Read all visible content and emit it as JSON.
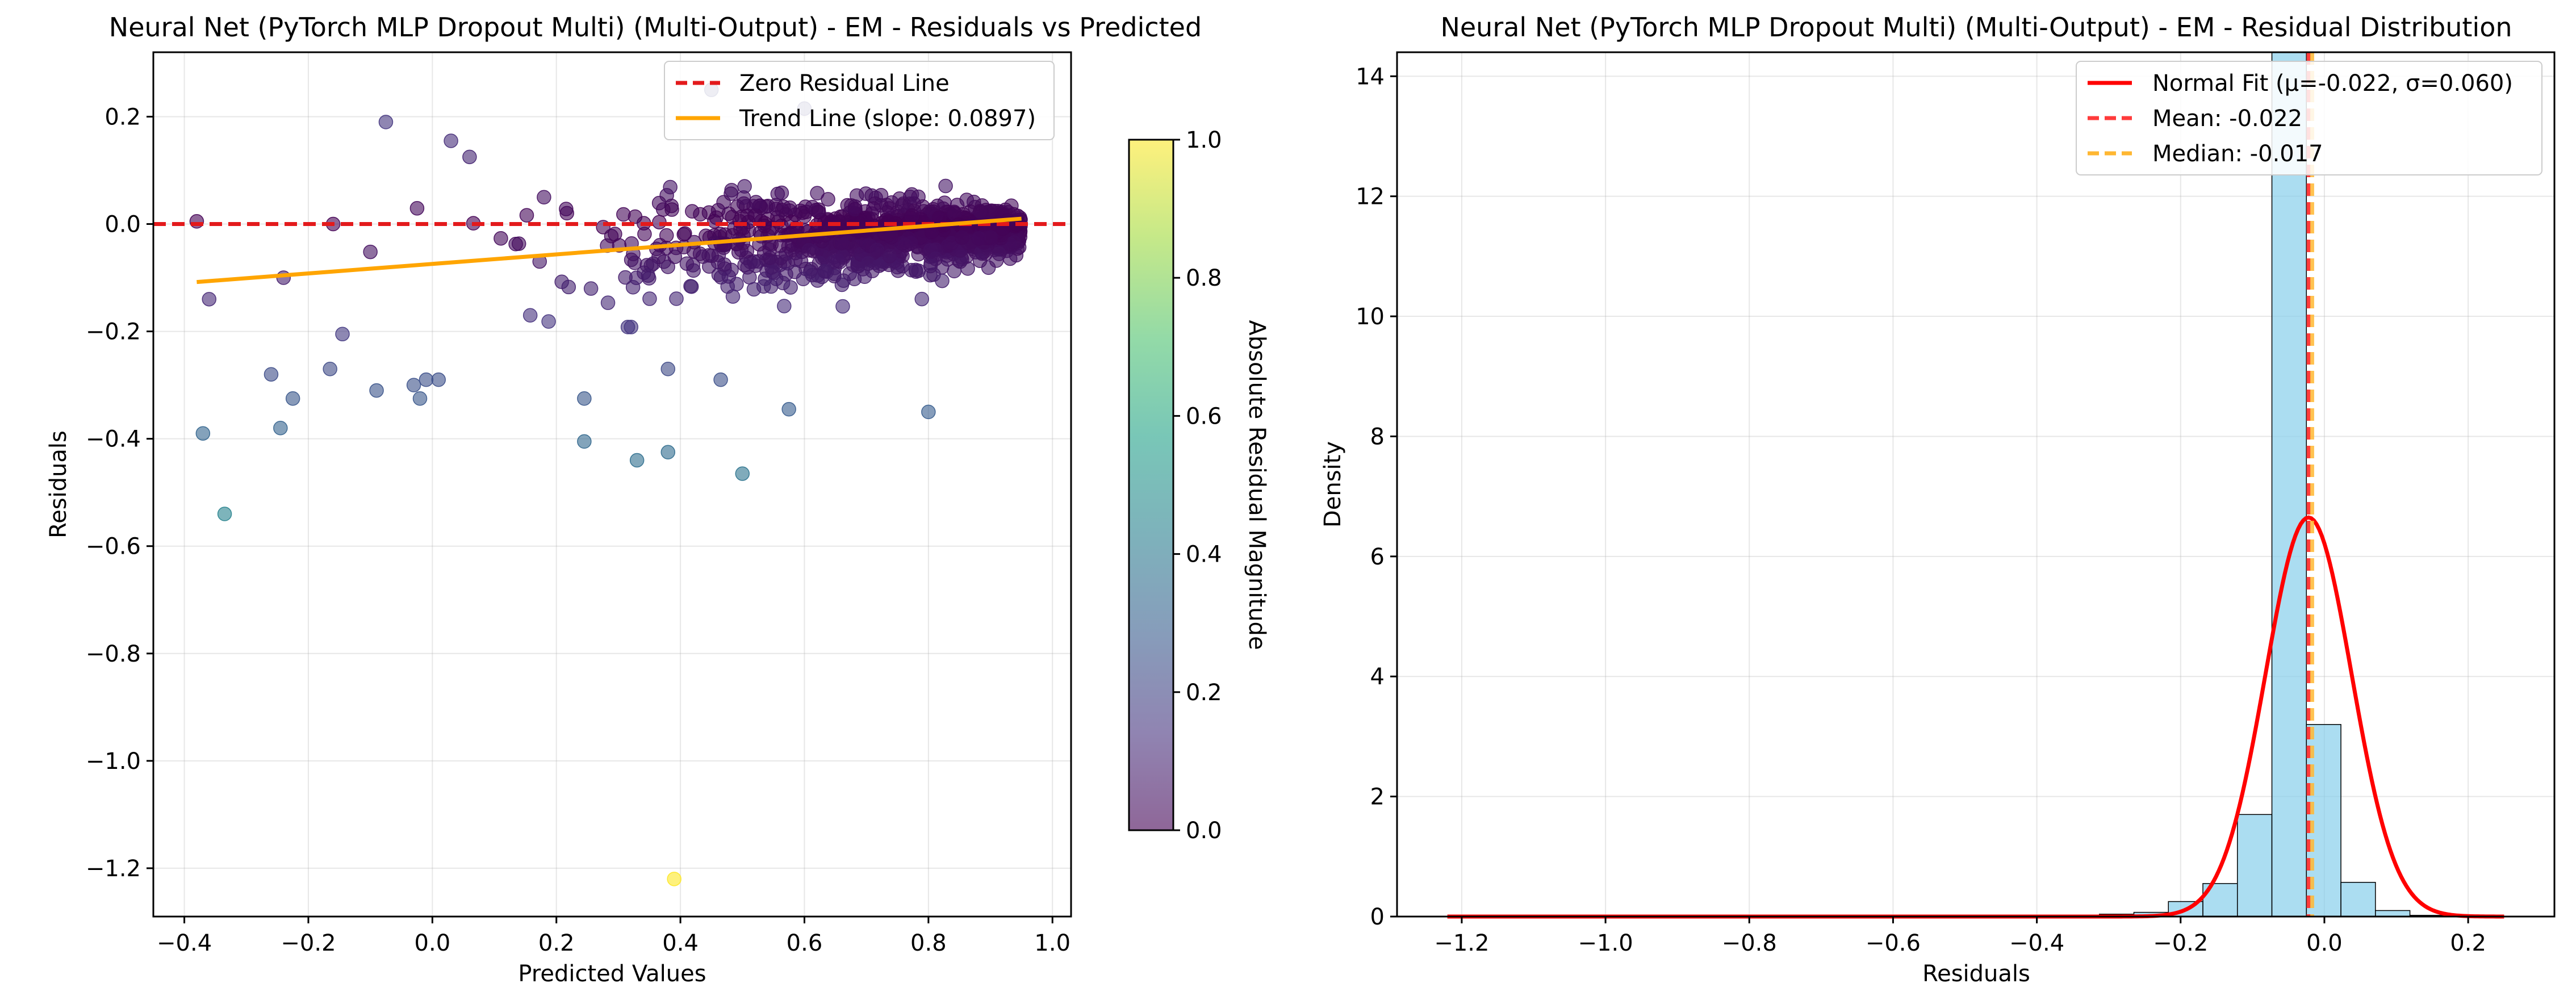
{
  "chart_data": [
    {
      "type": "scatter",
      "title": "Neural Net (PyTorch MLP Dropout Multi) (Multi-Output) - EM - Residuals vs Predicted",
      "xlabel": "Predicted Values",
      "ylabel": "Residuals",
      "xlim": [
        -0.45,
        1.03
      ],
      "ylim": [
        -1.29,
        0.32
      ],
      "grid": true,
      "xticks": [
        -0.4,
        -0.2,
        0.0,
        0.2,
        0.4,
        0.6,
        0.8,
        1.0
      ],
      "xtick_labels": [
        "−0.4",
        "−0.2",
        "0.0",
        "0.2",
        "0.4",
        "0.6",
        "0.8",
        "1.0"
      ],
      "yticks": [
        0.2,
        0.0,
        -0.2,
        -0.4,
        -0.6,
        -0.8,
        -1.0,
        -1.2
      ],
      "ytick_labels": [
        "0.2",
        "0.0",
        "−0.2",
        "−0.4",
        "−0.6",
        "−0.8",
        "−1.0",
        "−1.2"
      ],
      "legend_position": "top-right",
      "legend": [
        {
          "label": "Zero Residual Line",
          "color": "#e31a1c",
          "style": "dashed"
        },
        {
          "label": "Trend Line (slope: 0.0897)",
          "color": "#ffa500",
          "style": "solid"
        }
      ],
      "zero_line": 0.0,
      "trend_line": {
        "x": [
          -0.38,
          0.95
        ],
        "y": [
          -0.108,
          0.01
        ]
      },
      "colorbar": {
        "label": "Absolute Residual Magnitude",
        "range": [
          0.0,
          1.0
        ],
        "ticks": [
          "0.0",
          "0.2",
          "0.4",
          "0.6",
          "0.8",
          "1.0"
        ],
        "colormap": "viridis"
      },
      "outliers": [
        {
          "x": -0.38,
          "y": 0.005
        },
        {
          "x": -0.36,
          "y": -0.14
        },
        {
          "x": -0.37,
          "y": -0.39
        },
        {
          "x": -0.335,
          "y": -0.54
        },
        {
          "x": -0.26,
          "y": -0.28
        },
        {
          "x": -0.245,
          "y": -0.38
        },
        {
          "x": -0.24,
          "y": -0.1
        },
        {
          "x": -0.225,
          "y": -0.325
        },
        {
          "x": -0.165,
          "y": -0.27
        },
        {
          "x": -0.16,
          "y": 0.0
        },
        {
          "x": -0.145,
          "y": -0.205
        },
        {
          "x": -0.09,
          "y": -0.31
        },
        {
          "x": -0.075,
          "y": 0.19
        },
        {
          "x": -0.03,
          "y": -0.3
        },
        {
          "x": -0.02,
          "y": -0.325
        },
        {
          "x": -0.01,
          "y": -0.29
        },
        {
          "x": 0.01,
          "y": -0.29
        },
        {
          "x": 0.03,
          "y": 0.155
        },
        {
          "x": 0.06,
          "y": 0.125
        },
        {
          "x": 0.18,
          "y": 0.05
        },
        {
          "x": 0.245,
          "y": -0.325
        },
        {
          "x": 0.245,
          "y": -0.405
        },
        {
          "x": 0.33,
          "y": -0.44
        },
        {
          "x": 0.38,
          "y": -0.425
        },
        {
          "x": 0.38,
          "y": -0.27
        },
        {
          "x": 0.39,
          "y": -1.22
        },
        {
          "x": 0.45,
          "y": 0.25
        },
        {
          "x": 0.5,
          "y": -0.465
        },
        {
          "x": 0.575,
          "y": -0.345
        },
        {
          "x": 0.8,
          "y": -0.35
        },
        {
          "x": 0.6,
          "y": 0.215
        },
        {
          "x": 0.465,
          "y": -0.29
        }
      ],
      "point_cloud_note": ""
    },
    {
      "type": "histogram",
      "title": "Neural Net (PyTorch MLP Dropout Multi) (Multi-Output) - EM - Residual Distribution",
      "xlabel": "Residuals",
      "ylabel": "Density",
      "xlim": [
        -1.29,
        0.32
      ],
      "ylim": [
        0,
        14.4
      ],
      "grid": true,
      "xticks": [
        -1.2,
        -1.0,
        -0.8,
        -0.6,
        -0.4,
        -0.2,
        0.0,
        0.2
      ],
      "xtick_labels": [
        "−1.2",
        "−1.0",
        "−0.8",
        "−0.6",
        "−0.4",
        "−0.2",
        "0.0",
        "0.2"
      ],
      "yticks": [
        0,
        2,
        4,
        6,
        8,
        10,
        12,
        14
      ],
      "ytick_labels": [
        "0",
        "2",
        "4",
        "6",
        "8",
        "10",
        "12",
        "14"
      ],
      "legend_position": "top-right",
      "legend": [
        {
          "label": "Normal Fit (μ=-0.022, σ=0.060)",
          "color": "#ff0000",
          "style": "solid"
        },
        {
          "label": "Mean: -0.022",
          "color": "#ff3b3b",
          "style": "dashed"
        },
        {
          "label": "Median: -0.017",
          "color": "#ffb732",
          "style": "dashed"
        }
      ],
      "bins": [
        {
          "x0": -0.361,
          "x1": -0.313,
          "density": 0.02
        },
        {
          "x0": -0.313,
          "x1": -0.265,
          "density": 0.04
        },
        {
          "x0": -0.265,
          "x1": -0.217,
          "density": 0.07
        },
        {
          "x0": -0.217,
          "x1": -0.169,
          "density": 0.25
        },
        {
          "x0": -0.169,
          "x1": -0.121,
          "density": 0.55
        },
        {
          "x0": -0.121,
          "x1": -0.073,
          "density": 1.7
        },
        {
          "x0": -0.073,
          "x1": -0.025,
          "density": 14.5
        },
        {
          "x0": -0.025,
          "x1": 0.023,
          "density": 3.2
        },
        {
          "x0": 0.023,
          "x1": 0.071,
          "density": 0.57
        },
        {
          "x0": 0.071,
          "x1": 0.119,
          "density": 0.1
        },
        {
          "x0": 0.119,
          "x1": 0.167,
          "density": 0.02
        }
      ],
      "normal_fit": {
        "mu": -0.022,
        "sigma": 0.06,
        "x_range": [
          -1.22,
          0.25
        ]
      },
      "mean": -0.022,
      "median": -0.017
    }
  ]
}
